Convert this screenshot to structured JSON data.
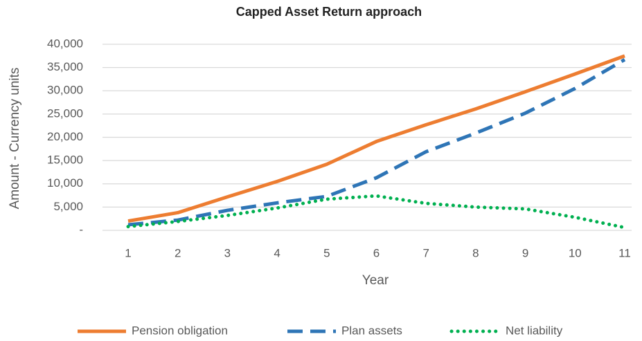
{
  "chart_data": {
    "type": "line",
    "title": "Capped Asset Return approach",
    "x_label": "Year",
    "y_label": "Amount - Currency units",
    "categories": [
      "1",
      "2",
      "3",
      "4",
      "5",
      "6",
      "7",
      "8",
      "9",
      "10",
      "11"
    ],
    "series": [
      {
        "name": "Pension obligation",
        "color": "#ed7d31",
        "style": "solid",
        "values": [
          2000,
          3800,
          7200,
          10500,
          14200,
          19100,
          22700,
          26100,
          29800,
          33600,
          37500
        ]
      },
      {
        "name": "Plan assets",
        "color": "#2e75b6",
        "style": "dashed",
        "values": [
          1200,
          2200,
          4300,
          5900,
          7300,
          11300,
          16900,
          20900,
          25200,
          30500,
          36700
        ]
      },
      {
        "name": "Net liability",
        "color": "#00b050",
        "style": "dotted",
        "values": [
          800,
          1900,
          3200,
          4800,
          6700,
          7400,
          5800,
          5000,
          4600,
          2800,
          600
        ]
      }
    ],
    "ylim": [
      0,
      40000
    ],
    "yticks": [
      {
        "value": 0,
        "label": "-"
      },
      {
        "value": 5000,
        "label": "5,000"
      },
      {
        "value": 10000,
        "label": "10,000"
      },
      {
        "value": 15000,
        "label": "15,000"
      },
      {
        "value": 20000,
        "label": "20,000"
      },
      {
        "value": 25000,
        "label": "25,000"
      },
      {
        "value": 30000,
        "label": "30,000"
      },
      {
        "value": 35000,
        "label": "35,000"
      },
      {
        "value": 40000,
        "label": "40,000"
      }
    ],
    "grid": true,
    "legend": "bottom"
  }
}
